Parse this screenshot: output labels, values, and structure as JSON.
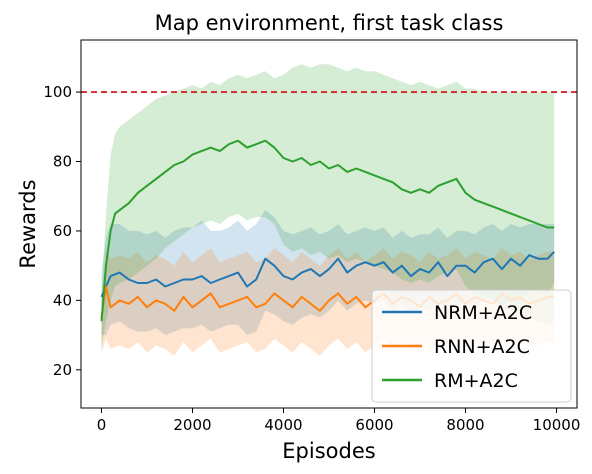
{
  "chart_data": {
    "type": "line",
    "title": "Map environment, first task class",
    "xlabel": "Episodes",
    "ylabel": "Rewards",
    "xlim": [
      -450,
      10450
    ],
    "ylim": [
      9,
      115
    ],
    "xticks": [
      0,
      2000,
      4000,
      6000,
      8000,
      10000
    ],
    "yticks": [
      20,
      40,
      60,
      80,
      100
    ],
    "reference_line": {
      "y": 100,
      "color": "#d62728",
      "style": "dashed"
    },
    "legend_position": "lower-right",
    "grid": false,
    "series": [
      {
        "name": "NRM+A2C",
        "color": "#1f77b4",
        "x": [
          0,
          100,
          200,
          400,
          600,
          800,
          1000,
          1200,
          1400,
          1600,
          1800,
          2000,
          2200,
          2400,
          2600,
          2800,
          3000,
          3200,
          3400,
          3600,
          3800,
          4000,
          4200,
          4400,
          4600,
          4800,
          5000,
          5200,
          5400,
          5600,
          5800,
          6000,
          6200,
          6400,
          6600,
          6800,
          7000,
          7200,
          7400,
          7600,
          7800,
          8000,
          8200,
          8400,
          8600,
          8800,
          9000,
          9200,
          9400,
          9600,
          9800,
          9950
        ],
        "mean": [
          41,
          44,
          47,
          48,
          46,
          45,
          45,
          46,
          44,
          45,
          46,
          46,
          47,
          45,
          46,
          47,
          48,
          44,
          46,
          52,
          50,
          47,
          46,
          48,
          49,
          47,
          49,
          52,
          48,
          50,
          51,
          50,
          51,
          48,
          50,
          47,
          49,
          48,
          51,
          47,
          50,
          50,
          48,
          51,
          52,
          49,
          52,
          50,
          53,
          52,
          52,
          54
        ],
        "upper": [
          48,
          58,
          62,
          62,
          60,
          60,
          59,
          60,
          58,
          60,
          61,
          61,
          63,
          60,
          60,
          61,
          63,
          60,
          62,
          66,
          64,
          60,
          59,
          60,
          61,
          59,
          60,
          62,
          59,
          60,
          61,
          60,
          61,
          58,
          60,
          58,
          59,
          59,
          61,
          58,
          60,
          60,
          59,
          61,
          62,
          60,
          62,
          61,
          62,
          62,
          62,
          62
        ],
        "lower": [
          30,
          30,
          33,
          34,
          32,
          31,
          31,
          32,
          30,
          31,
          32,
          32,
          33,
          31,
          32,
          33,
          33,
          30,
          31,
          37,
          36,
          34,
          33,
          35,
          36,
          35,
          37,
          40,
          37,
          39,
          40,
          39,
          40,
          37,
          39,
          36,
          38,
          37,
          40,
          36,
          39,
          39,
          37,
          40,
          41,
          38,
          41,
          39,
          43,
          42,
          42,
          45
        ]
      },
      {
        "name": "RNN+A2C",
        "color": "#ff7f0e",
        "x": [
          0,
          100,
          200,
          400,
          600,
          800,
          1000,
          1200,
          1400,
          1600,
          1800,
          2000,
          2200,
          2400,
          2600,
          2800,
          3000,
          3200,
          3400,
          3600,
          3800,
          4000,
          4200,
          4400,
          4600,
          4800,
          5000,
          5200,
          5400,
          5600,
          5800,
          6000,
          6200,
          6400,
          6600,
          6800,
          7000,
          7200,
          7400,
          7600,
          7800,
          8000,
          8200,
          8400,
          8600,
          8800,
          9000,
          9200,
          9400,
          9600,
          9800,
          9950
        ],
        "mean": [
          35,
          44,
          38,
          40,
          39,
          41,
          38,
          40,
          39,
          37,
          41,
          38,
          40,
          42,
          38,
          39,
          40,
          41,
          38,
          39,
          42,
          40,
          38,
          41,
          39,
          37,
          40,
          42,
          39,
          41,
          38,
          40,
          42,
          39,
          41,
          40,
          38,
          41,
          39,
          40,
          42,
          39,
          41,
          40,
          39,
          42,
          40,
          41,
          39,
          40,
          41,
          41
        ],
        "upper": [
          40,
          55,
          52,
          53,
          52,
          54,
          51,
          53,
          52,
          50,
          54,
          51,
          53,
          55,
          51,
          52,
          53,
          54,
          51,
          52,
          55,
          53,
          51,
          54,
          52,
          50,
          53,
          55,
          52,
          54,
          51,
          53,
          55,
          52,
          54,
          53,
          51,
          54,
          52,
          53,
          55,
          52,
          54,
          53,
          52,
          55,
          53,
          54,
          52,
          53,
          54,
          54
        ],
        "lower": [
          25,
          29,
          26,
          27,
          26,
          28,
          25,
          27,
          26,
          24,
          28,
          25,
          27,
          29,
          25,
          26,
          27,
          28,
          25,
          26,
          29,
          27,
          25,
          28,
          26,
          24,
          27,
          29,
          26,
          28,
          25,
          27,
          29,
          26,
          28,
          27,
          25,
          28,
          26,
          27,
          29,
          26,
          28,
          27,
          26,
          29,
          27,
          28,
          26,
          27,
          28,
          28
        ]
      },
      {
        "name": "RM+A2C",
        "color": "#2ca02c",
        "x": [
          0,
          100,
          200,
          300,
          400,
          600,
          800,
          1000,
          1200,
          1400,
          1600,
          1800,
          2000,
          2200,
          2400,
          2600,
          2800,
          3000,
          3200,
          3400,
          3600,
          3800,
          4000,
          4200,
          4400,
          4600,
          4800,
          5000,
          5200,
          5400,
          5600,
          5800,
          6000,
          6200,
          6400,
          6600,
          6800,
          7000,
          7200,
          7400,
          7600,
          7800,
          8000,
          8200,
          8400,
          8600,
          8800,
          9000,
          9200,
          9400,
          9600,
          9800,
          9950
        ],
        "mean": [
          34,
          50,
          60,
          65,
          66,
          68,
          71,
          73,
          75,
          77,
          79,
          80,
          82,
          83,
          84,
          83,
          85,
          86,
          84,
          85,
          86,
          84,
          81,
          80,
          81,
          79,
          80,
          78,
          79,
          77,
          78,
          77,
          76,
          75,
          74,
          72,
          71,
          72,
          71,
          73,
          74,
          75,
          71,
          69,
          68,
          67,
          66,
          65,
          64,
          63,
          62,
          61,
          61
        ],
        "upper": [
          42,
          65,
          82,
          88,
          90,
          92,
          94,
          96,
          98,
          99,
          100,
          101,
          102,
          101,
          103,
          102,
          104,
          105,
          104,
          105,
          106,
          104,
          105,
          107,
          108,
          107,
          108,
          108,
          107,
          106,
          107,
          106,
          106,
          105,
          104,
          103,
          102,
          103,
          102,
          101,
          102,
          103,
          101,
          101,
          100,
          100,
          100,
          100,
          100,
          100,
          100,
          100,
          100
        ],
        "lower": [
          26,
          34,
          40,
          44,
          45,
          46,
          48,
          50,
          52,
          55,
          57,
          59,
          61,
          62,
          63,
          62,
          64,
          65,
          63,
          64,
          64,
          62,
          56,
          54,
          55,
          53,
          54,
          52,
          53,
          51,
          52,
          51,
          50,
          49,
          48,
          46,
          45,
          46,
          45,
          47,
          48,
          49,
          44,
          42,
          41,
          40,
          38,
          37,
          36,
          35,
          34,
          33,
          33
        ]
      }
    ]
  }
}
